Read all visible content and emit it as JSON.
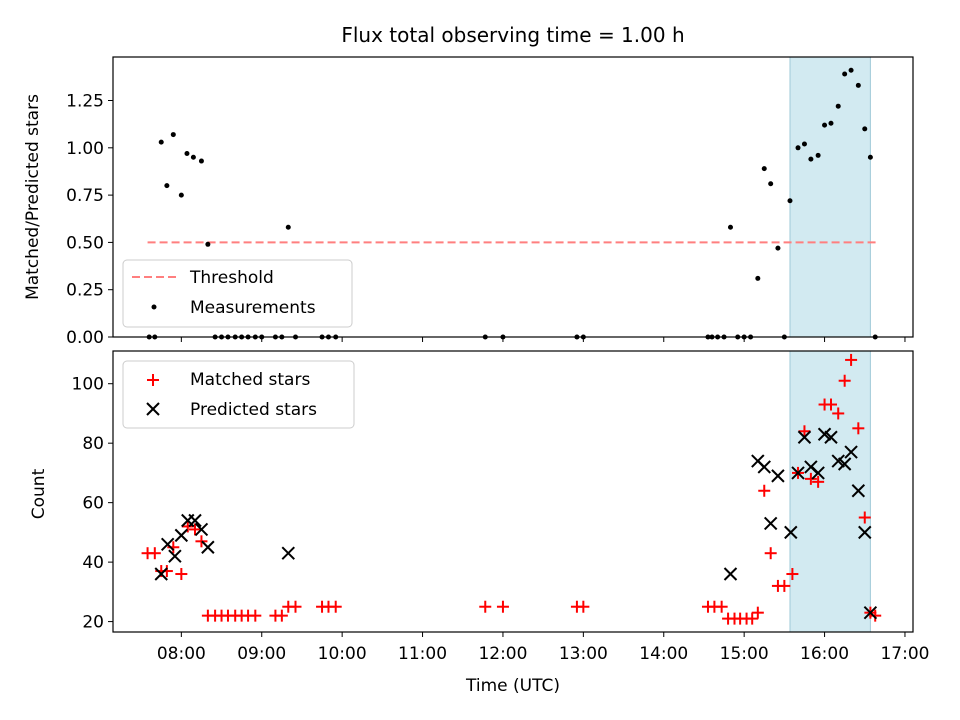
{
  "chart_data": [
    {
      "type": "scatter",
      "title": "Flux total observing time = 1.00 h",
      "xlabel": "",
      "ylabel": "Matched/Predicted stars",
      "xlim": [
        7.15,
        17.1
      ],
      "ylim": [
        0.0,
        1.48
      ],
      "yticks": [
        0.0,
        0.25,
        0.5,
        0.75,
        1.0,
        1.25
      ],
      "ytick_labels": [
        "0.00",
        "0.25",
        "0.50",
        "0.75",
        "1.00",
        "1.25"
      ],
      "highlight_span": [
        15.57,
        16.57
      ],
      "threshold": {
        "name": "Threshold",
        "value": 0.5,
        "x": [
          7.58,
          16.68
        ],
        "color": "#ff7f7f"
      },
      "series": [
        {
          "name": "Measurements",
          "color": "#000000",
          "x": [
            7.6,
            7.67,
            7.75,
            7.82,
            7.9,
            8.0,
            8.07,
            8.15,
            8.25,
            8.33,
            8.42,
            8.5,
            8.58,
            8.67,
            8.75,
            8.83,
            8.92,
            9.0,
            9.17,
            9.25,
            9.33,
            9.42,
            9.75,
            9.83,
            9.92,
            11.78,
            12.0,
            12.92,
            13.0,
            14.55,
            14.6,
            14.67,
            14.75,
            14.83,
            14.92,
            15.0,
            15.08,
            15.17,
            15.25,
            15.33,
            15.42,
            15.5,
            15.57,
            15.67,
            15.75,
            15.83,
            15.92,
            16.0,
            16.08,
            16.17,
            16.25,
            16.33,
            16.42,
            16.5,
            16.57,
            16.63
          ],
          "y": [
            0.0,
            0.0,
            1.03,
            0.8,
            1.07,
            0.75,
            0.97,
            0.95,
            0.93,
            0.49,
            0.0,
            0.0,
            0.0,
            0.0,
            0.0,
            0.0,
            0.0,
            0.0,
            0.0,
            0.0,
            0.58,
            0.0,
            0.0,
            0.0,
            0.0,
            0.0,
            0.0,
            0.0,
            0.0,
            0.0,
            0.0,
            0.0,
            0.0,
            0.58,
            0.0,
            0.0,
            0.0,
            0.31,
            0.89,
            0.81,
            0.47,
            0.0,
            0.72,
            1.0,
            1.02,
            0.94,
            0.96,
            1.12,
            1.13,
            1.22,
            1.39,
            1.41,
            1.33,
            1.1,
            0.95,
            0.0
          ]
        }
      ],
      "legend": {
        "position": "lower-left",
        "entries": [
          "Threshold",
          "Measurements"
        ]
      }
    },
    {
      "type": "scatter",
      "title": "",
      "xlabel": "Time (UTC)",
      "ylabel": "Count",
      "xlim": [
        7.15,
        17.1
      ],
      "ylim": [
        16.5,
        111
      ],
      "xticks": [
        8,
        9,
        10,
        11,
        12,
        13,
        14,
        15,
        16,
        17
      ],
      "xtick_labels": [
        "08:00",
        "09:00",
        "10:00",
        "11:00",
        "12:00",
        "13:00",
        "14:00",
        "15:00",
        "16:00",
        "17:00"
      ],
      "yticks": [
        20,
        40,
        60,
        80,
        100
      ],
      "ytick_labels": [
        "20",
        "40",
        "60",
        "80",
        "100"
      ],
      "highlight_span": [
        15.57,
        16.57
      ],
      "series": [
        {
          "name": "Matched stars",
          "marker": "+",
          "color": "#ff0000",
          "x": [
            7.58,
            7.67,
            7.75,
            7.82,
            7.9,
            8.0,
            8.08,
            8.17,
            8.25,
            8.33,
            8.42,
            8.5,
            8.58,
            8.67,
            8.75,
            8.83,
            8.92,
            9.17,
            9.25,
            9.33,
            9.42,
            9.75,
            9.83,
            9.92,
            11.78,
            12.0,
            12.92,
            13.0,
            14.55,
            14.63,
            14.72,
            14.8,
            14.88,
            14.95,
            15.03,
            15.1,
            15.17,
            15.25,
            15.33,
            15.42,
            15.5,
            15.6,
            15.67,
            15.75,
            15.83,
            15.92,
            16.0,
            16.08,
            16.17,
            16.25,
            16.33,
            16.42,
            16.5,
            16.57,
            16.63
          ],
          "y": [
            43,
            43,
            37,
            37,
            45,
            36,
            52,
            51,
            47,
            22,
            22,
            22,
            22,
            22,
            22,
            22,
            22,
            22,
            22,
            25,
            25,
            25,
            25,
            25,
            25,
            25,
            25,
            25,
            25,
            25,
            25,
            21,
            21,
            21,
            21,
            21,
            23,
            64,
            43,
            32,
            32,
            36,
            70,
            84,
            68,
            67,
            93,
            93,
            90,
            101,
            108,
            85,
            55,
            23,
            22
          ]
        },
        {
          "name": "Predicted stars",
          "marker": "x",
          "color": "#000000",
          "x": [
            7.75,
            7.83,
            7.92,
            8.0,
            8.08,
            8.17,
            8.25,
            8.33,
            9.33,
            14.83,
            15.17,
            15.25,
            15.33,
            15.42,
            15.58,
            15.67,
            15.75,
            15.83,
            15.92,
            16.0,
            16.08,
            16.17,
            16.25,
            16.33,
            16.42,
            16.5,
            16.57
          ],
          "y": [
            36,
            46,
            42,
            49,
            54,
            54,
            51,
            45,
            43,
            36,
            74,
            72,
            53,
            69,
            50,
            70,
            82,
            72,
            70,
            83,
            82,
            74,
            73,
            77,
            64,
            50,
            23
          ]
        }
      ],
      "legend": {
        "position": "upper-left",
        "entries": [
          "Matched stars",
          "Predicted stars"
        ]
      }
    }
  ]
}
